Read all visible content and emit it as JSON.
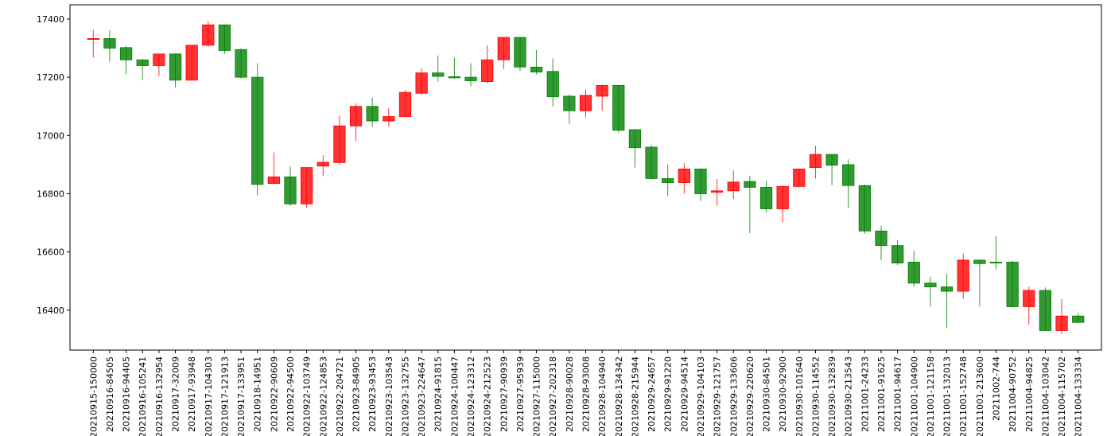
{
  "chart_data": {
    "type": "candlestick",
    "categories": [
      "20210915-150000",
      "20210916-84505",
      "20210916-94405",
      "20210916-105241",
      "20210916-132954",
      "20210917-32009",
      "20210917-93948",
      "20210917-104303",
      "20210917-121913",
      "20210917-133951",
      "20210918-14951",
      "20210922-90609",
      "20210922-94500",
      "20210922-103749",
      "20210922-124853",
      "20210922-204721",
      "20210923-84905",
      "20210923-93453",
      "20210923-103543",
      "20210923-132755",
      "20210923-224647",
      "20210924-91815",
      "20210924-100447",
      "20210924-123312",
      "20210924-212523",
      "20210927-90939",
      "20210927-95939",
      "20210927-115000",
      "20210927-202318",
      "20210928-90028",
      "20210928-93008",
      "20210928-104940",
      "20210928-134342",
      "20210928-215944",
      "20210929-24657",
      "20210929-91220",
      "20210929-94514",
      "20210929-104103",
      "20210929-121757",
      "20210929-133606",
      "20210929-220620",
      "20210930-84501",
      "20210930-92900",
      "20210930-101640",
      "20210930-114552",
      "20210930-132839",
      "20210930-213543",
      "20211001-24233",
      "20211001-91625",
      "20211001-94617",
      "20211001-104900",
      "20211001-121158",
      "20211001-132013",
      "20211001-152748",
      "20211001-213600",
      "20211002-744",
      "20211004-90752",
      "20211004-94825",
      "20211004-103042",
      "20211004-115702",
      "20211004-133334"
    ],
    "open": [
      17330,
      17333,
      17302,
      17260,
      17240,
      17280,
      17190,
      17310,
      17380,
      17295,
      17200,
      16835,
      16858,
      16765,
      16895,
      16907,
      17033,
      17100,
      17050,
      17065,
      17145,
      17215,
      17202,
      17200,
      17185,
      17260,
      17337,
      17235,
      17220,
      17135,
      17085,
      17135,
      17172,
      17020,
      16960,
      16852,
      16838,
      16885,
      16805,
      16810,
      16842,
      16822,
      16748,
      16825,
      16890,
      16935,
      16900,
      16828,
      16672,
      16622,
      16565,
      16493,
      16480,
      16465,
      16572,
      16565,
      16565,
      16412,
      16468,
      16330,
      16380
    ],
    "high": [
      17362,
      17362,
      17307,
      17262,
      17280,
      17282,
      17310,
      17393,
      17380,
      17300,
      17248,
      16942,
      16895,
      16890,
      16932,
      17068,
      17110,
      17130,
      17095,
      17155,
      17232,
      17275,
      17268,
      17248,
      17310,
      17337,
      17337,
      17293,
      17265,
      17140,
      17158,
      17175,
      17172,
      17020,
      16968,
      16900,
      16905,
      16885,
      16850,
      16880,
      16862,
      16845,
      16828,
      16885,
      16965,
      16935,
      16918,
      16832,
      16690,
      16640,
      16605,
      16515,
      16525,
      16595,
      16572,
      16655,
      16570,
      16482,
      16478,
      16438,
      16390
    ],
    "low": [
      17268,
      17253,
      17210,
      17190,
      17205,
      17165,
      17190,
      17305,
      17280,
      17195,
      16795,
      16835,
      16758,
      16752,
      16860,
      16900,
      16982,
      17030,
      17030,
      17062,
      17140,
      17185,
      17195,
      17170,
      17180,
      17228,
      17222,
      17210,
      17100,
      17040,
      17062,
      17085,
      17010,
      16890,
      16850,
      16792,
      16800,
      16775,
      16758,
      16782,
      16665,
      16735,
      16702,
      16822,
      16852,
      16828,
      16750,
      16662,
      16572,
      16555,
      16480,
      16412,
      16338,
      16438,
      16412,
      16540,
      16412,
      16350,
      16330,
      16318,
      16358
    ],
    "close": [
      17333,
      17300,
      17260,
      17240,
      17280,
      17190,
      17310,
      17380,
      17292,
      17200,
      16832,
      16858,
      16765,
      16890,
      16908,
      17033,
      17100,
      17050,
      17065,
      17148,
      17215,
      17203,
      17198,
      17188,
      17260,
      17337,
      17235,
      17218,
      17133,
      17085,
      17138,
      17172,
      17018,
      16958,
      16852,
      16838,
      16885,
      16800,
      16810,
      16840,
      16822,
      16748,
      16825,
      16885,
      16935,
      16898,
      16828,
      16672,
      16622,
      16562,
      16493,
      16480,
      16465,
      16572,
      16560,
      16562,
      16412,
      16468,
      16330,
      16380,
      16358
    ],
    "up_color": "#ff0000",
    "down_color": "#008000",
    "ylim": [
      16263,
      17449
    ],
    "yticks": [
      16400,
      16600,
      16800,
      17000,
      17200,
      17400
    ]
  }
}
